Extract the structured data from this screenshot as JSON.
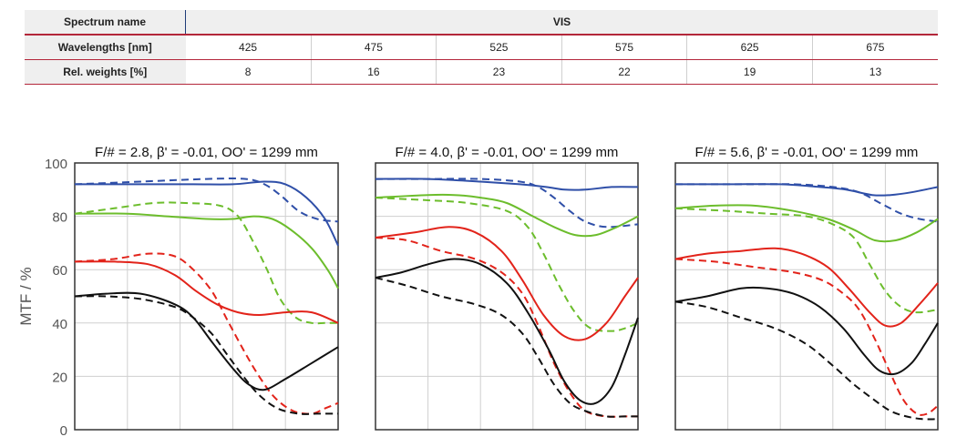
{
  "table": {
    "header_label": "Spectrum name",
    "header_value": "VIS",
    "rows": [
      {
        "label": "Wavelengths [nm]",
        "values": [
          "425",
          "475",
          "525",
          "575",
          "625",
          "675"
        ]
      },
      {
        "label": "Rel. weights [%]",
        "values": [
          "8",
          "16",
          "23",
          "22",
          "19",
          "13"
        ]
      }
    ]
  },
  "colors": {
    "blue": "#2f4fa8",
    "green": "#6cbd2c",
    "red": "#e2231a",
    "black": "#111111"
  },
  "chart_data": [
    {
      "type": "line",
      "title": "F/# = 2.8, β' = -0.01, OO' = 1299 mm",
      "ylabel": "MTF / %",
      "ylim": [
        0,
        100
      ],
      "yticks": [
        "0",
        "20",
        "40",
        "60",
        "80",
        "100"
      ],
      "grid": true,
      "xlim": [
        0,
        1
      ],
      "series": [
        {
          "color": "blue",
          "style": "solid",
          "x": [
            0,
            0.1,
            0.25,
            0.45,
            0.6,
            0.72,
            0.8,
            0.88,
            0.95,
            1
          ],
          "y": [
            92,
            92,
            92,
            92,
            92,
            93,
            92,
            87,
            79,
            69
          ]
        },
        {
          "color": "blue",
          "style": "dashed",
          "x": [
            0,
            0.25,
            0.5,
            0.65,
            0.72,
            0.78,
            0.85,
            0.92,
            1
          ],
          "y": [
            92,
            93,
            94,
            94,
            92,
            88,
            82,
            79,
            78
          ]
        },
        {
          "color": "green",
          "style": "solid",
          "x": [
            0,
            0.2,
            0.35,
            0.5,
            0.6,
            0.68,
            0.75,
            0.82,
            0.9,
            0.96,
            1
          ],
          "y": [
            81,
            81,
            80,
            79,
            79,
            80,
            79,
            75,
            68,
            60,
            53
          ]
        },
        {
          "color": "green",
          "style": "dashed",
          "x": [
            0,
            0.15,
            0.3,
            0.42,
            0.55,
            0.62,
            0.68,
            0.73,
            0.78,
            0.84,
            0.9,
            0.95,
            1
          ],
          "y": [
            81,
            83,
            85,
            85,
            84,
            80,
            70,
            60,
            49,
            42,
            40,
            40,
            40
          ]
        },
        {
          "color": "red",
          "style": "solid",
          "x": [
            0,
            0.15,
            0.28,
            0.38,
            0.46,
            0.54,
            0.62,
            0.7,
            0.8,
            0.9,
            1
          ],
          "y": [
            63,
            63,
            62,
            58,
            52,
            47,
            44,
            43,
            44,
            44,
            40
          ]
        },
        {
          "color": "red",
          "style": "dashed",
          "x": [
            0,
            0.15,
            0.28,
            0.38,
            0.45,
            0.52,
            0.58,
            0.64,
            0.7,
            0.76,
            0.83,
            0.9,
            0.95,
            1
          ],
          "y": [
            63,
            64,
            66,
            65,
            60,
            52,
            41,
            30,
            20,
            12,
            7,
            6,
            8,
            10
          ]
        },
        {
          "color": "black",
          "style": "solid",
          "x": [
            0,
            0.12,
            0.25,
            0.38,
            0.45,
            0.52,
            0.6,
            0.66,
            0.72,
            0.8,
            0.9,
            1
          ],
          "y": [
            50,
            51,
            51,
            47,
            42,
            33,
            23,
            17,
            15,
            19,
            25,
            31
          ]
        },
        {
          "color": "black",
          "style": "dashed",
          "x": [
            0,
            0.12,
            0.25,
            0.38,
            0.45,
            0.52,
            0.58,
            0.64,
            0.7,
            0.77,
            0.85,
            0.92,
            1
          ],
          "y": [
            50,
            50,
            49,
            46,
            42,
            36,
            28,
            20,
            13,
            8,
            6,
            6,
            6
          ]
        }
      ]
    },
    {
      "type": "line",
      "title": "F/# = 4.0, β' = -0.01, OO' = 1299 mm",
      "ylim": [
        0,
        100
      ],
      "grid": true,
      "xlim": [
        0,
        1
      ],
      "series": [
        {
          "color": "blue",
          "style": "solid",
          "x": [
            0,
            0.2,
            0.4,
            0.55,
            0.65,
            0.72,
            0.8,
            0.9,
            1
          ],
          "y": [
            94,
            94,
            93,
            92,
            91,
            90,
            90,
            91,
            91
          ]
        },
        {
          "color": "blue",
          "style": "dashed",
          "x": [
            0,
            0.2,
            0.4,
            0.55,
            0.62,
            0.68,
            0.74,
            0.8,
            0.88,
            1
          ],
          "y": [
            94,
            94,
            94,
            93,
            91,
            87,
            82,
            78,
            76,
            77
          ]
        },
        {
          "color": "green",
          "style": "solid",
          "x": [
            0,
            0.2,
            0.3,
            0.4,
            0.5,
            0.6,
            0.68,
            0.76,
            0.84,
            0.92,
            1
          ],
          "y": [
            87,
            88,
            88,
            87,
            85,
            80,
            76,
            73,
            73,
            76,
            80
          ]
        },
        {
          "color": "green",
          "style": "dashed",
          "x": [
            0,
            0.2,
            0.35,
            0.5,
            0.58,
            0.64,
            0.7,
            0.76,
            0.82,
            0.9,
            0.95,
            1
          ],
          "y": [
            87,
            86,
            85,
            82,
            76,
            66,
            54,
            44,
            38,
            37,
            38,
            40
          ]
        },
        {
          "color": "red",
          "style": "solid",
          "x": [
            0,
            0.15,
            0.28,
            0.38,
            0.48,
            0.56,
            0.64,
            0.72,
            0.8,
            0.88,
            0.95,
            1
          ],
          "y": [
            72,
            74,
            76,
            74,
            67,
            56,
            43,
            35,
            34,
            40,
            50,
            57
          ]
        },
        {
          "color": "red",
          "style": "dashed",
          "x": [
            0,
            0.12,
            0.25,
            0.38,
            0.48,
            0.56,
            0.62,
            0.68,
            0.74,
            0.8,
            0.88,
            0.95,
            1
          ],
          "y": [
            72,
            71,
            67,
            64,
            59,
            51,
            39,
            25,
            14,
            7,
            5,
            5,
            5
          ]
        },
        {
          "color": "black",
          "style": "solid",
          "x": [
            0,
            0.1,
            0.2,
            0.3,
            0.4,
            0.5,
            0.58,
            0.66,
            0.72,
            0.78,
            0.84,
            0.9,
            0.95,
            1
          ],
          "y": [
            57,
            59,
            62,
            64,
            62,
            55,
            44,
            30,
            18,
            11,
            10,
            16,
            28,
            42
          ]
        },
        {
          "color": "black",
          "style": "dashed",
          "x": [
            0,
            0.12,
            0.25,
            0.38,
            0.48,
            0.56,
            0.62,
            0.68,
            0.74,
            0.8,
            0.88,
            0.95,
            1
          ],
          "y": [
            57,
            54,
            50,
            47,
            43,
            36,
            27,
            17,
            10,
            7,
            5,
            5,
            5
          ]
        }
      ]
    },
    {
      "type": "line",
      "title": "F/# = 5.6, β' = -0.01, OO' = 1299 mm",
      "ylim": [
        0,
        100
      ],
      "grid": true,
      "xlim": [
        0,
        1
      ],
      "series": [
        {
          "color": "blue",
          "style": "solid",
          "x": [
            0,
            0.2,
            0.4,
            0.55,
            0.65,
            0.75,
            0.82,
            0.9,
            1
          ],
          "y": [
            92,
            92,
            92,
            91,
            90,
            88,
            88,
            89,
            91
          ]
        },
        {
          "color": "blue",
          "style": "dashed",
          "x": [
            0,
            0.25,
            0.45,
            0.6,
            0.7,
            0.78,
            0.86,
            0.93,
            1
          ],
          "y": [
            92,
            92,
            92,
            91,
            89,
            85,
            81,
            79,
            78
          ]
        },
        {
          "color": "green",
          "style": "solid",
          "x": [
            0,
            0.15,
            0.3,
            0.45,
            0.58,
            0.68,
            0.76,
            0.84,
            0.92,
            1
          ],
          "y": [
            83,
            84,
            84,
            82,
            79,
            75,
            71,
            71,
            74,
            79
          ]
        },
        {
          "color": "green",
          "style": "dashed",
          "x": [
            0,
            0.2,
            0.35,
            0.5,
            0.6,
            0.68,
            0.74,
            0.8,
            0.86,
            0.92,
            1
          ],
          "y": [
            83,
            82,
            81,
            80,
            77,
            72,
            62,
            52,
            46,
            44,
            45
          ]
        },
        {
          "color": "red",
          "style": "solid",
          "x": [
            0,
            0.12,
            0.25,
            0.38,
            0.48,
            0.58,
            0.66,
            0.74,
            0.8,
            0.86,
            0.93,
            1
          ],
          "y": [
            64,
            66,
            67,
            68,
            66,
            61,
            53,
            44,
            39,
            40,
            47,
            55
          ]
        },
        {
          "color": "red",
          "style": "dashed",
          "x": [
            0,
            0.15,
            0.3,
            0.45,
            0.56,
            0.64,
            0.7,
            0.76,
            0.82,
            0.87,
            0.92,
            0.96,
            1
          ],
          "y": [
            64,
            63,
            61,
            59,
            56,
            51,
            45,
            34,
            21,
            11,
            6,
            6,
            9
          ]
        },
        {
          "color": "black",
          "style": "solid",
          "x": [
            0,
            0.12,
            0.25,
            0.35,
            0.45,
            0.55,
            0.64,
            0.72,
            0.78,
            0.84,
            0.9,
            0.95,
            1
          ],
          "y": [
            48,
            50,
            53,
            53,
            51,
            46,
            38,
            28,
            22,
            21,
            25,
            32,
            40
          ]
        },
        {
          "color": "black",
          "style": "dashed",
          "x": [
            0,
            0.12,
            0.25,
            0.38,
            0.5,
            0.6,
            0.68,
            0.76,
            0.82,
            0.88,
            0.94,
            1
          ],
          "y": [
            48,
            46,
            42,
            38,
            32,
            24,
            17,
            11,
            7,
            5,
            4,
            4
          ]
        }
      ]
    }
  ]
}
